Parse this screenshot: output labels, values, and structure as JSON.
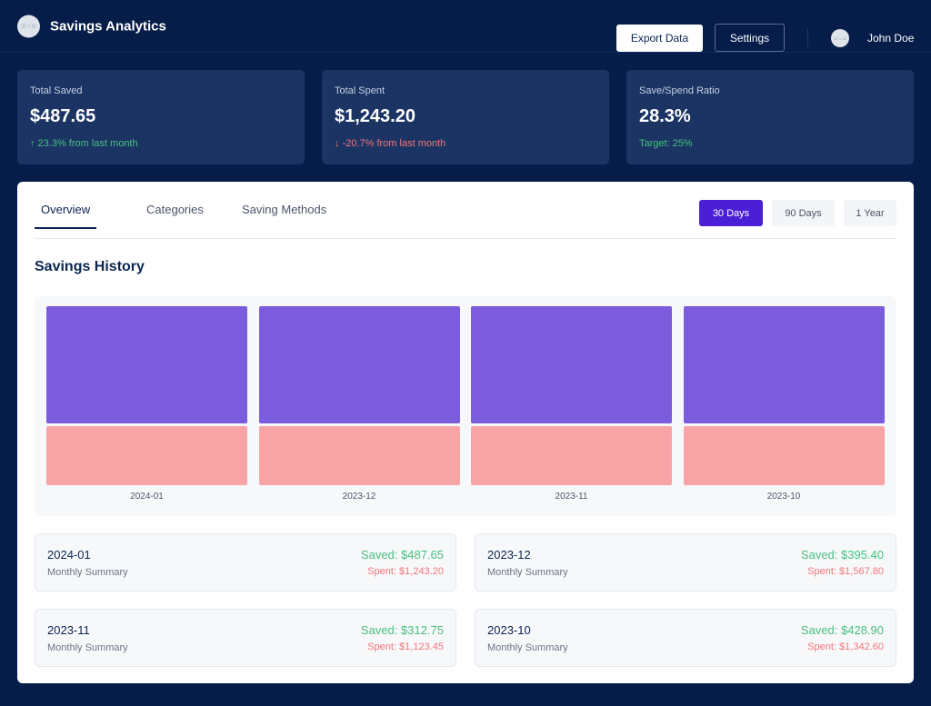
{
  "header": {
    "logo_text": "32 × 32",
    "title": "Savings Analytics",
    "export_label": "Export Data",
    "settings_label": "Settings",
    "avatar_text": "32 × 32",
    "user_name": "John Doe"
  },
  "stats": [
    {
      "label": "Total Saved",
      "value": "$487.65",
      "change": "↑ 23.3% from last month",
      "tone": "green"
    },
    {
      "label": "Total Spent",
      "value": "$1,243.20",
      "change": "↓ -20.7% from last month",
      "tone": "red"
    },
    {
      "label": "Save/Spend Ratio",
      "value": "28.3%",
      "change": "Target: 25%",
      "tone": "green"
    }
  ],
  "tabs": [
    "Overview",
    "Categories",
    "Saving Methods"
  ],
  "active_tab": "Overview",
  "ranges": [
    "30 Days",
    "90 Days",
    "1 Year"
  ],
  "active_range": "30 Days",
  "section_title": "Savings History",
  "colors": {
    "background": "#061d4a",
    "card": "#1b3463",
    "accent": "#4b1fd6",
    "saved_bar": "#7b5cdc",
    "spent_bar": "#f8a4a6",
    "positive": "#47c07f",
    "negative": "#f2757a"
  },
  "chart_data": {
    "type": "bar",
    "stacked": true,
    "categories": [
      "2024-01",
      "2023-12",
      "2023-11",
      "2023-10"
    ],
    "series": [
      {
        "name": "",
        "values": [
          2,
          2,
          2,
          2
        ]
      },
      {
        "name": "",
        "values": [
          1,
          1,
          1,
          1
        ]
      }
    ]
  },
  "summaries": [
    {
      "month": "2024-01",
      "sub": "Monthly Summary",
      "saved": "Saved: $487.65",
      "spent": "Spent: $1,243.20"
    },
    {
      "month": "2023-12",
      "sub": "Monthly Summary",
      "saved": "Saved: $395.40",
      "spent": "Spent: $1,567.80"
    },
    {
      "month": "2023-11",
      "sub": "Monthly Summary",
      "saved": "Saved: $312.75",
      "spent": "Spent: $1,123.45"
    },
    {
      "month": "2023-10",
      "sub": "Monthly Summary",
      "saved": "Saved: $428.90",
      "spent": "Spent: $1,342.60"
    }
  ]
}
